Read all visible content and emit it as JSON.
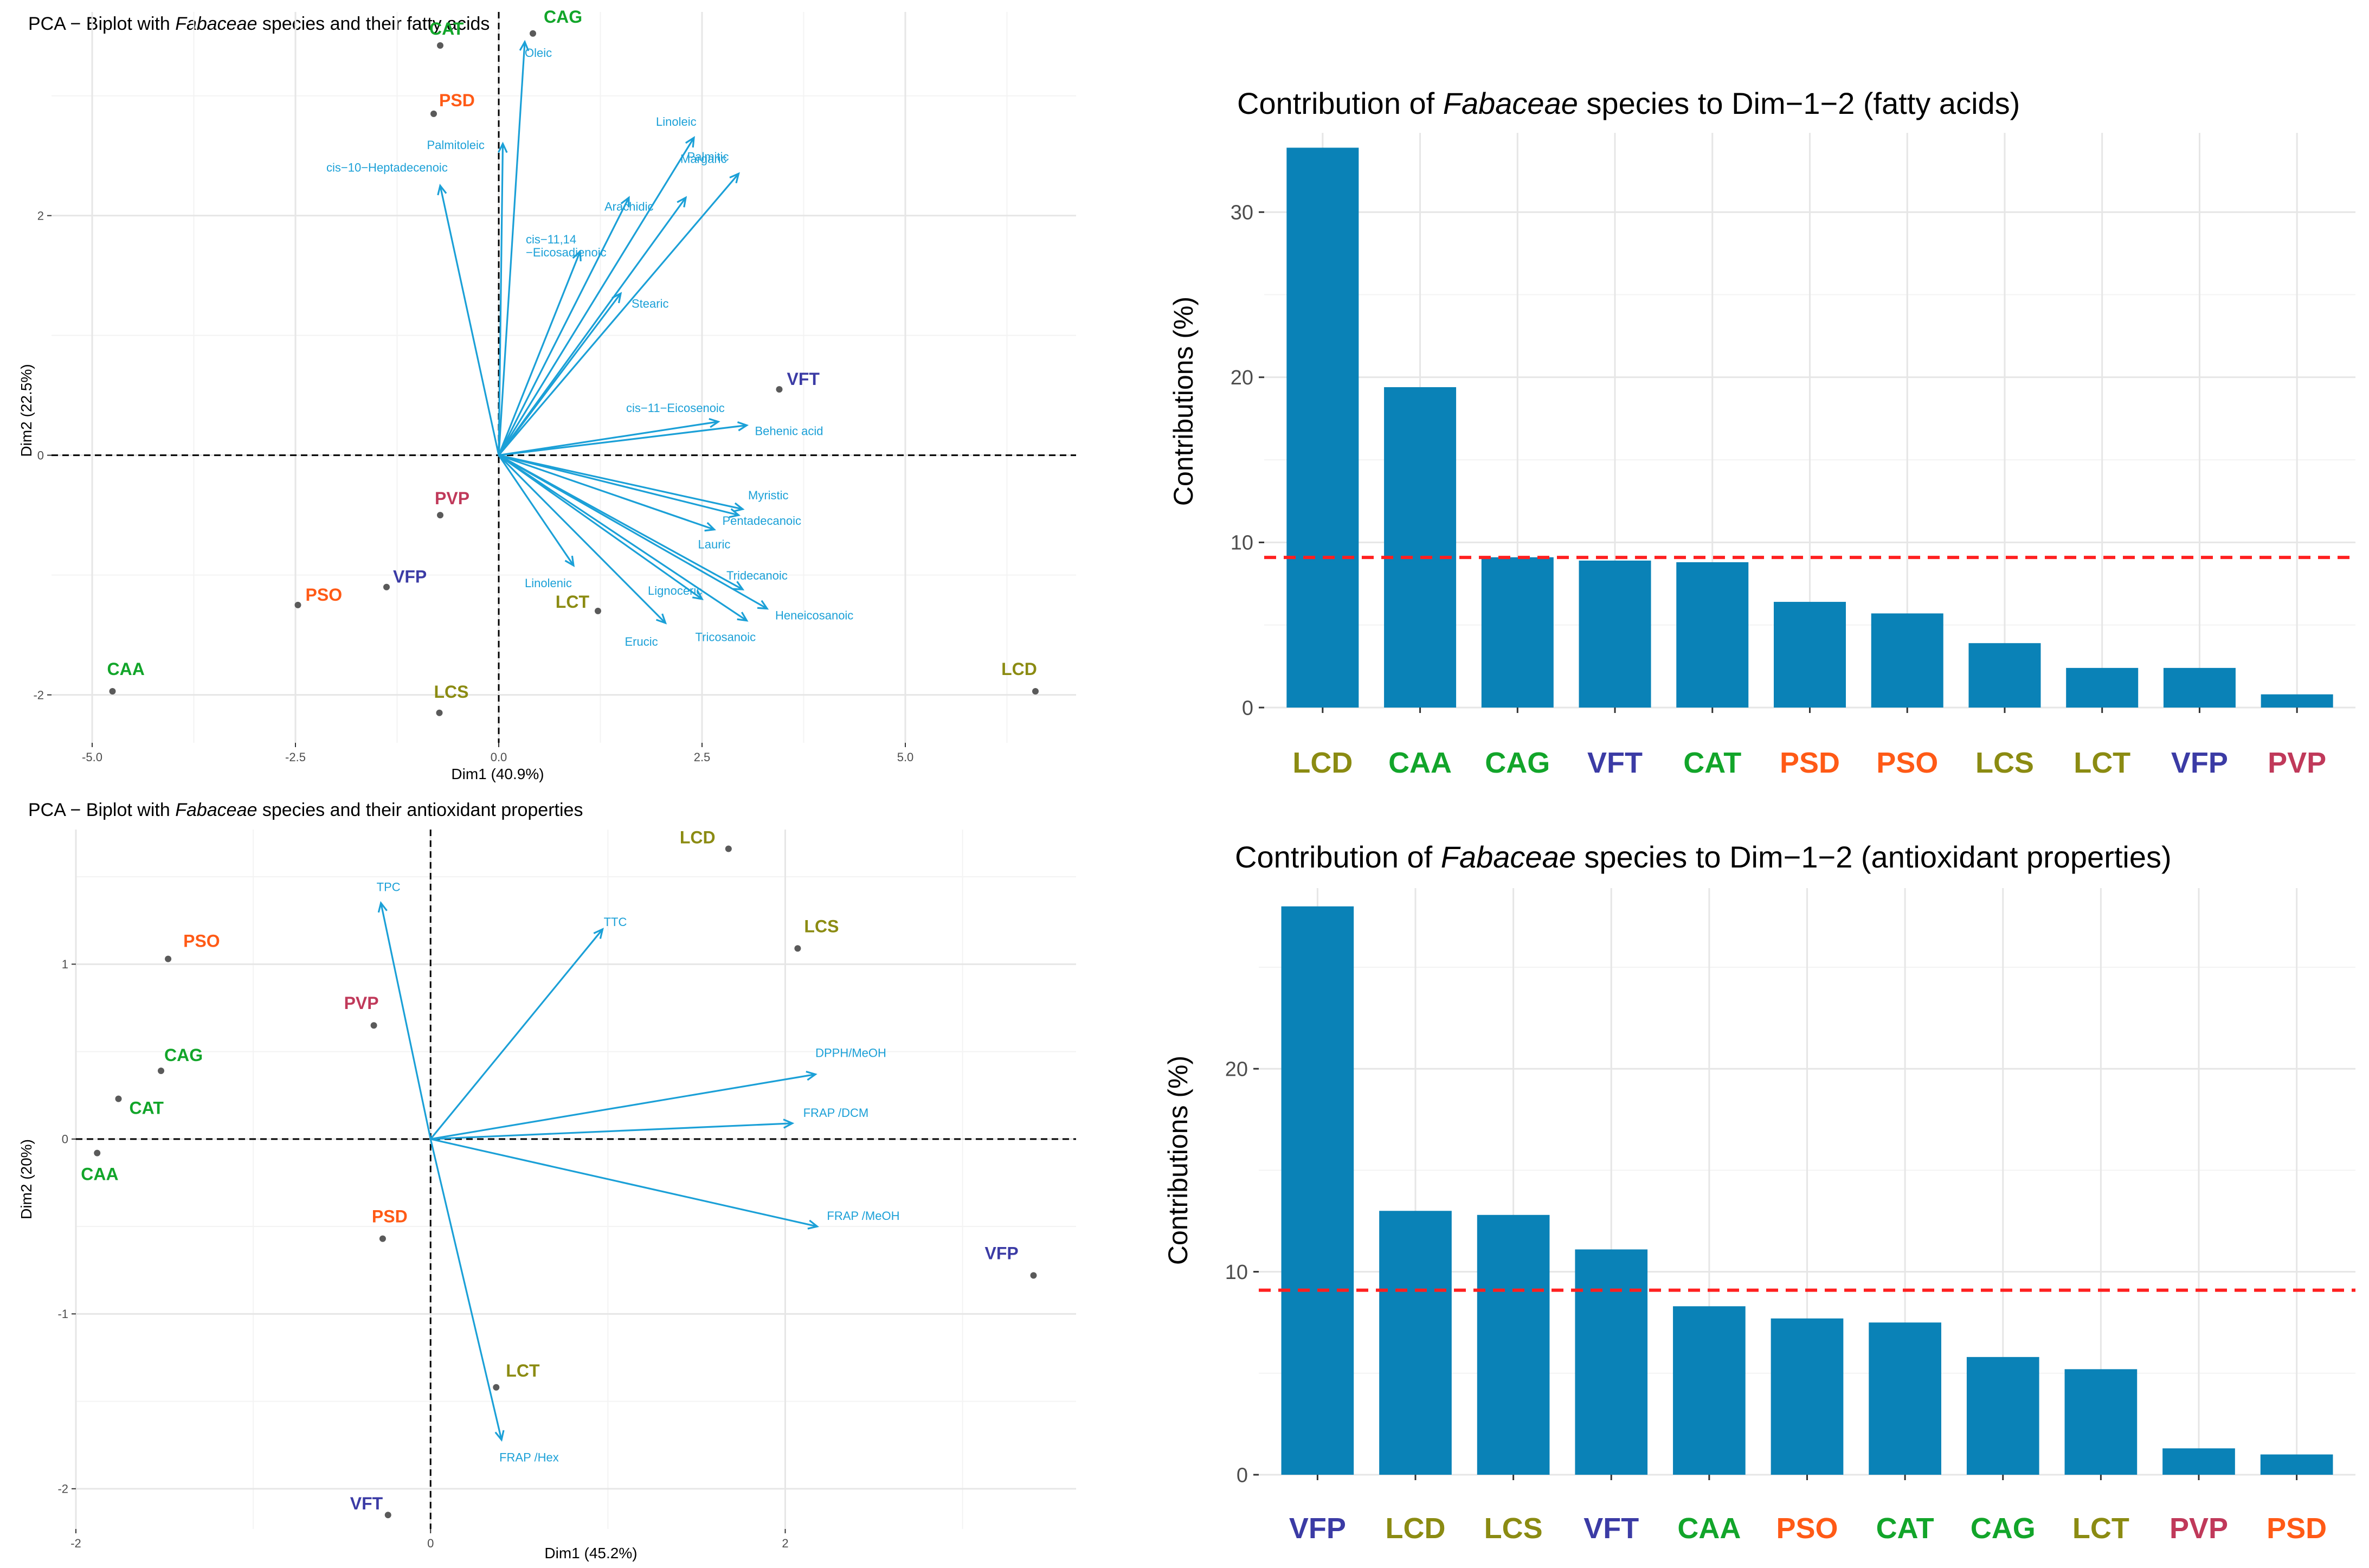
{
  "colors": {
    "arrow": "#1ba0d7",
    "bar": "#0a82b7",
    "refline": "#ff2020",
    "grid_major": "#e6e6e6",
    "grid_minor": "#f3f3f3",
    "point": "#5a5a5a",
    "groups": {
      "Olive": "#8b8b12",
      "Green": "#12a52a",
      "Navy": "#3b3ba5",
      "Orange": "#ff5a16",
      "Crimson": "#c0395a"
    }
  },
  "chart_data": [
    {
      "id": "pca_fatty",
      "type": "scatter",
      "subtype": "pca_biplot",
      "title": {
        "prefix": "PCA − Biplot with ",
        "italic": "Fabaceae",
        "suffix": " species and their fatty acids"
      },
      "xlabel": "Dim1 (40.9%)",
      "ylabel": "Dim2 (22.5%)",
      "xlim": [
        -5.5,
        7.1
      ],
      "ylim": [
        -2.4,
        3.7
      ],
      "xticks": [
        -5.0,
        -2.5,
        0.0,
        2.5,
        5.0
      ],
      "xtick_labels": [
        "-5.0",
        "-2.5",
        "0.0",
        "2.5",
        "5.0"
      ],
      "yticks": [
        -2,
        0,
        2
      ],
      "ytick_labels": [
        "-2",
        "0",
        "2"
      ],
      "points": [
        {
          "label": "CAT",
          "x": -0.72,
          "y": 3.42,
          "group": "Green"
        },
        {
          "label": "CAG",
          "x": 0.42,
          "y": 3.52,
          "group": "Green"
        },
        {
          "label": "PSD",
          "x": -0.8,
          "y": 2.85,
          "group": "Orange"
        },
        {
          "label": "VFT",
          "x": 3.45,
          "y": 0.55,
          "group": "Navy"
        },
        {
          "label": "PVP",
          "x": -0.72,
          "y": -0.5,
          "group": "Crimson"
        },
        {
          "label": "PSO",
          "x": -2.47,
          "y": -1.25,
          "group": "Orange"
        },
        {
          "label": "VFP",
          "x": -1.38,
          "y": -1.1,
          "group": "Navy"
        },
        {
          "label": "LCT",
          "x": 1.22,
          "y": -1.3,
          "group": "Olive"
        },
        {
          "label": "CAA",
          "x": -4.75,
          "y": -1.97,
          "group": "Green"
        },
        {
          "label": "LCS",
          "x": -0.73,
          "y": -2.15,
          "group": "Olive"
        },
        {
          "label": "LCD",
          "x": 6.6,
          "y": -1.97,
          "group": "Olive"
        }
      ],
      "vectors": [
        {
          "label": "Oleic",
          "x": 0.32,
          "y": 3.45
        },
        {
          "label": "Palmitoleic",
          "x": 0.05,
          "y": 2.6
        },
        {
          "label": "cis−10−Heptadecenoic",
          "x": -0.72,
          "y": 2.25
        },
        {
          "label": "Linoleic",
          "x": 2.4,
          "y": 2.65
        },
        {
          "label": "Palmitic",
          "x": 2.95,
          "y": 2.35
        },
        {
          "label": "Margaric",
          "x": 2.3,
          "y": 2.15
        },
        {
          "label": "Arachidic",
          "x": 1.6,
          "y": 2.15
        },
        {
          "label": "cis−11,14\n−Eicosadienoic",
          "x": 1.0,
          "y": 1.7
        },
        {
          "label": "Stearic",
          "x": 1.5,
          "y": 1.35
        },
        {
          "label": "cis−11−Eicosenoic",
          "x": 2.7,
          "y": 0.28
        },
        {
          "label": "Behenic acid",
          "x": 3.05,
          "y": 0.25
        },
        {
          "label": "Myristic",
          "x": 3.0,
          "y": -0.45
        },
        {
          "label": "Pentadecanoic",
          "x": 2.95,
          "y": -0.5
        },
        {
          "label": "Lauric",
          "x": 2.65,
          "y": -0.62
        },
        {
          "label": "Tridecanoic",
          "x": 3.0,
          "y": -1.12
        },
        {
          "label": "Heneicosanoic",
          "x": 3.3,
          "y": -1.28
        },
        {
          "label": "Tricosanoic",
          "x": 3.05,
          "y": -1.38
        },
        {
          "label": "Lignoceric",
          "x": 2.5,
          "y": -1.2
        },
        {
          "label": "Erucic",
          "x": 2.05,
          "y": -1.4
        },
        {
          "label": "Linolenic",
          "x": 0.92,
          "y": -0.92
        }
      ]
    },
    {
      "id": "contrib_fatty",
      "type": "bar",
      "title": {
        "prefix": "Contribution of ",
        "italic": "Fabaceae",
        "suffix": " species to Dim−1−2 (fatty acids)"
      },
      "xlabel": "",
      "ylabel": "Contributions (%)",
      "ylim": [
        0,
        34.8
      ],
      "yticks": [
        0,
        10,
        20,
        30
      ],
      "ytick_labels": [
        "0",
        "10",
        "20",
        "30"
      ],
      "categories": [
        "LCD",
        "CAA",
        "CAG",
        "VFT",
        "CAT",
        "PSD",
        "PSO",
        "LCS",
        "LCT",
        "VFP",
        "PVP"
      ],
      "category_groups": [
        "Olive",
        "Green",
        "Green",
        "Navy",
        "Green",
        "Orange",
        "Orange",
        "Olive",
        "Olive",
        "Navy",
        "Crimson"
      ],
      "values": [
        33.9,
        19.4,
        9.1,
        8.9,
        8.8,
        6.4,
        5.7,
        3.9,
        2.4,
        2.4,
        0.8
      ],
      "reference_line": 9.09
    },
    {
      "id": "pca_antiox",
      "type": "scatter",
      "subtype": "pca_biplot",
      "title": {
        "prefix": "PCA − Biplot with ",
        "italic": "Fabaceae",
        "suffix": " species and their antioxidant properties"
      },
      "xlabel": "Dim1 (45.2%)",
      "ylabel": "Dim2 (20%)",
      "xlim": [
        -2.0,
        3.64
      ],
      "ylim": [
        -2.23,
        1.77
      ],
      "xticks": [
        -2,
        0,
        2
      ],
      "xtick_labels": [
        "-2",
        "0",
        "2"
      ],
      "yticks": [
        -2,
        -1,
        0,
        1
      ],
      "ytick_labels": [
        "-2",
        "-1",
        "0",
        "1"
      ],
      "points": [
        {
          "label": "LCD",
          "x": 1.68,
          "y": 1.66,
          "group": "Olive"
        },
        {
          "label": "LCS",
          "x": 2.07,
          "y": 1.09,
          "group": "Olive"
        },
        {
          "label": "PSO",
          "x": -1.48,
          "y": 1.03,
          "group": "Orange"
        },
        {
          "label": "PVP",
          "x": -0.32,
          "y": 0.65,
          "group": "Crimson"
        },
        {
          "label": "CAG",
          "x": -1.52,
          "y": 0.39,
          "group": "Green"
        },
        {
          "label": "CAT",
          "x": -1.76,
          "y": 0.23,
          "group": "Green"
        },
        {
          "label": "CAA",
          "x": -1.88,
          "y": -0.08,
          "group": "Green"
        },
        {
          "label": "PSD",
          "x": -0.27,
          "y": -0.57,
          "group": "Orange"
        },
        {
          "label": "VFP",
          "x": 3.4,
          "y": -0.78,
          "group": "Navy"
        },
        {
          "label": "LCT",
          "x": 0.37,
          "y": -1.42,
          "group": "Olive"
        },
        {
          "label": "VFT",
          "x": -0.24,
          "y": -2.15,
          "group": "Navy"
        }
      ],
      "vectors": [
        {
          "label": "TPC",
          "x": -0.28,
          "y": 1.35
        },
        {
          "label": "TTC",
          "x": 0.97,
          "y": 1.2
        },
        {
          "label": "DPPH/MeOH",
          "x": 2.17,
          "y": 0.37
        },
        {
          "label": "FRAP /DCM",
          "x": 2.04,
          "y": 0.09
        },
        {
          "label": "FRAP /MeOH",
          "x": 2.18,
          "y": -0.5
        },
        {
          "label": "FRAP /Hex",
          "x": 0.4,
          "y": -1.72
        }
      ]
    },
    {
      "id": "contrib_antiox",
      "type": "bar",
      "title": {
        "prefix": "Contribution of ",
        "italic": "Fabaceae",
        "suffix": " species to Dim−1−2 (antioxidant properties)"
      },
      "xlabel": "",
      "ylabel": "Contributions (%)",
      "ylim": [
        0,
        28.9
      ],
      "yticks": [
        0,
        10,
        20
      ],
      "ytick_labels": [
        "0",
        "10",
        "20"
      ],
      "categories": [
        "VFP",
        "LCD",
        "LCS",
        "VFT",
        "CAA",
        "PSO",
        "CAT",
        "CAG",
        "LCT",
        "PVP",
        "PSD"
      ],
      "category_groups": [
        "Navy",
        "Olive",
        "Olive",
        "Navy",
        "Green",
        "Orange",
        "Green",
        "Green",
        "Olive",
        "Crimson",
        "Orange"
      ],
      "values": [
        28.0,
        13.0,
        12.8,
        11.1,
        8.3,
        7.7,
        7.5,
        5.8,
        5.2,
        1.3,
        1.0
      ],
      "reference_line": 9.09
    }
  ]
}
